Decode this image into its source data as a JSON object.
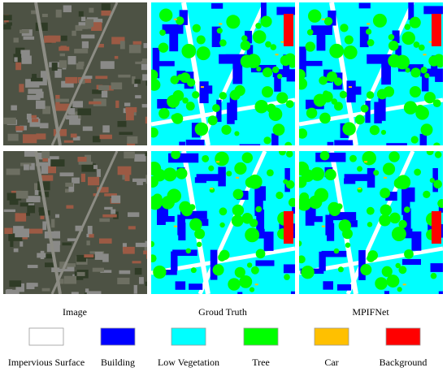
{
  "columns": [
    "Image",
    "Groud Truth",
    "MPIFNet"
  ],
  "legend": [
    {
      "label": "Impervious Surface",
      "color": "#ffffff"
    },
    {
      "label": "Building",
      "color": "#0000ff"
    },
    {
      "label": "Low Vegetation",
      "color": "#00ffff"
    },
    {
      "label": "Tree",
      "color": "#00ff00"
    },
    {
      "label": "Car",
      "color": "#ffc000"
    },
    {
      "label": "Background",
      "color": "#ff0000"
    }
  ]
}
